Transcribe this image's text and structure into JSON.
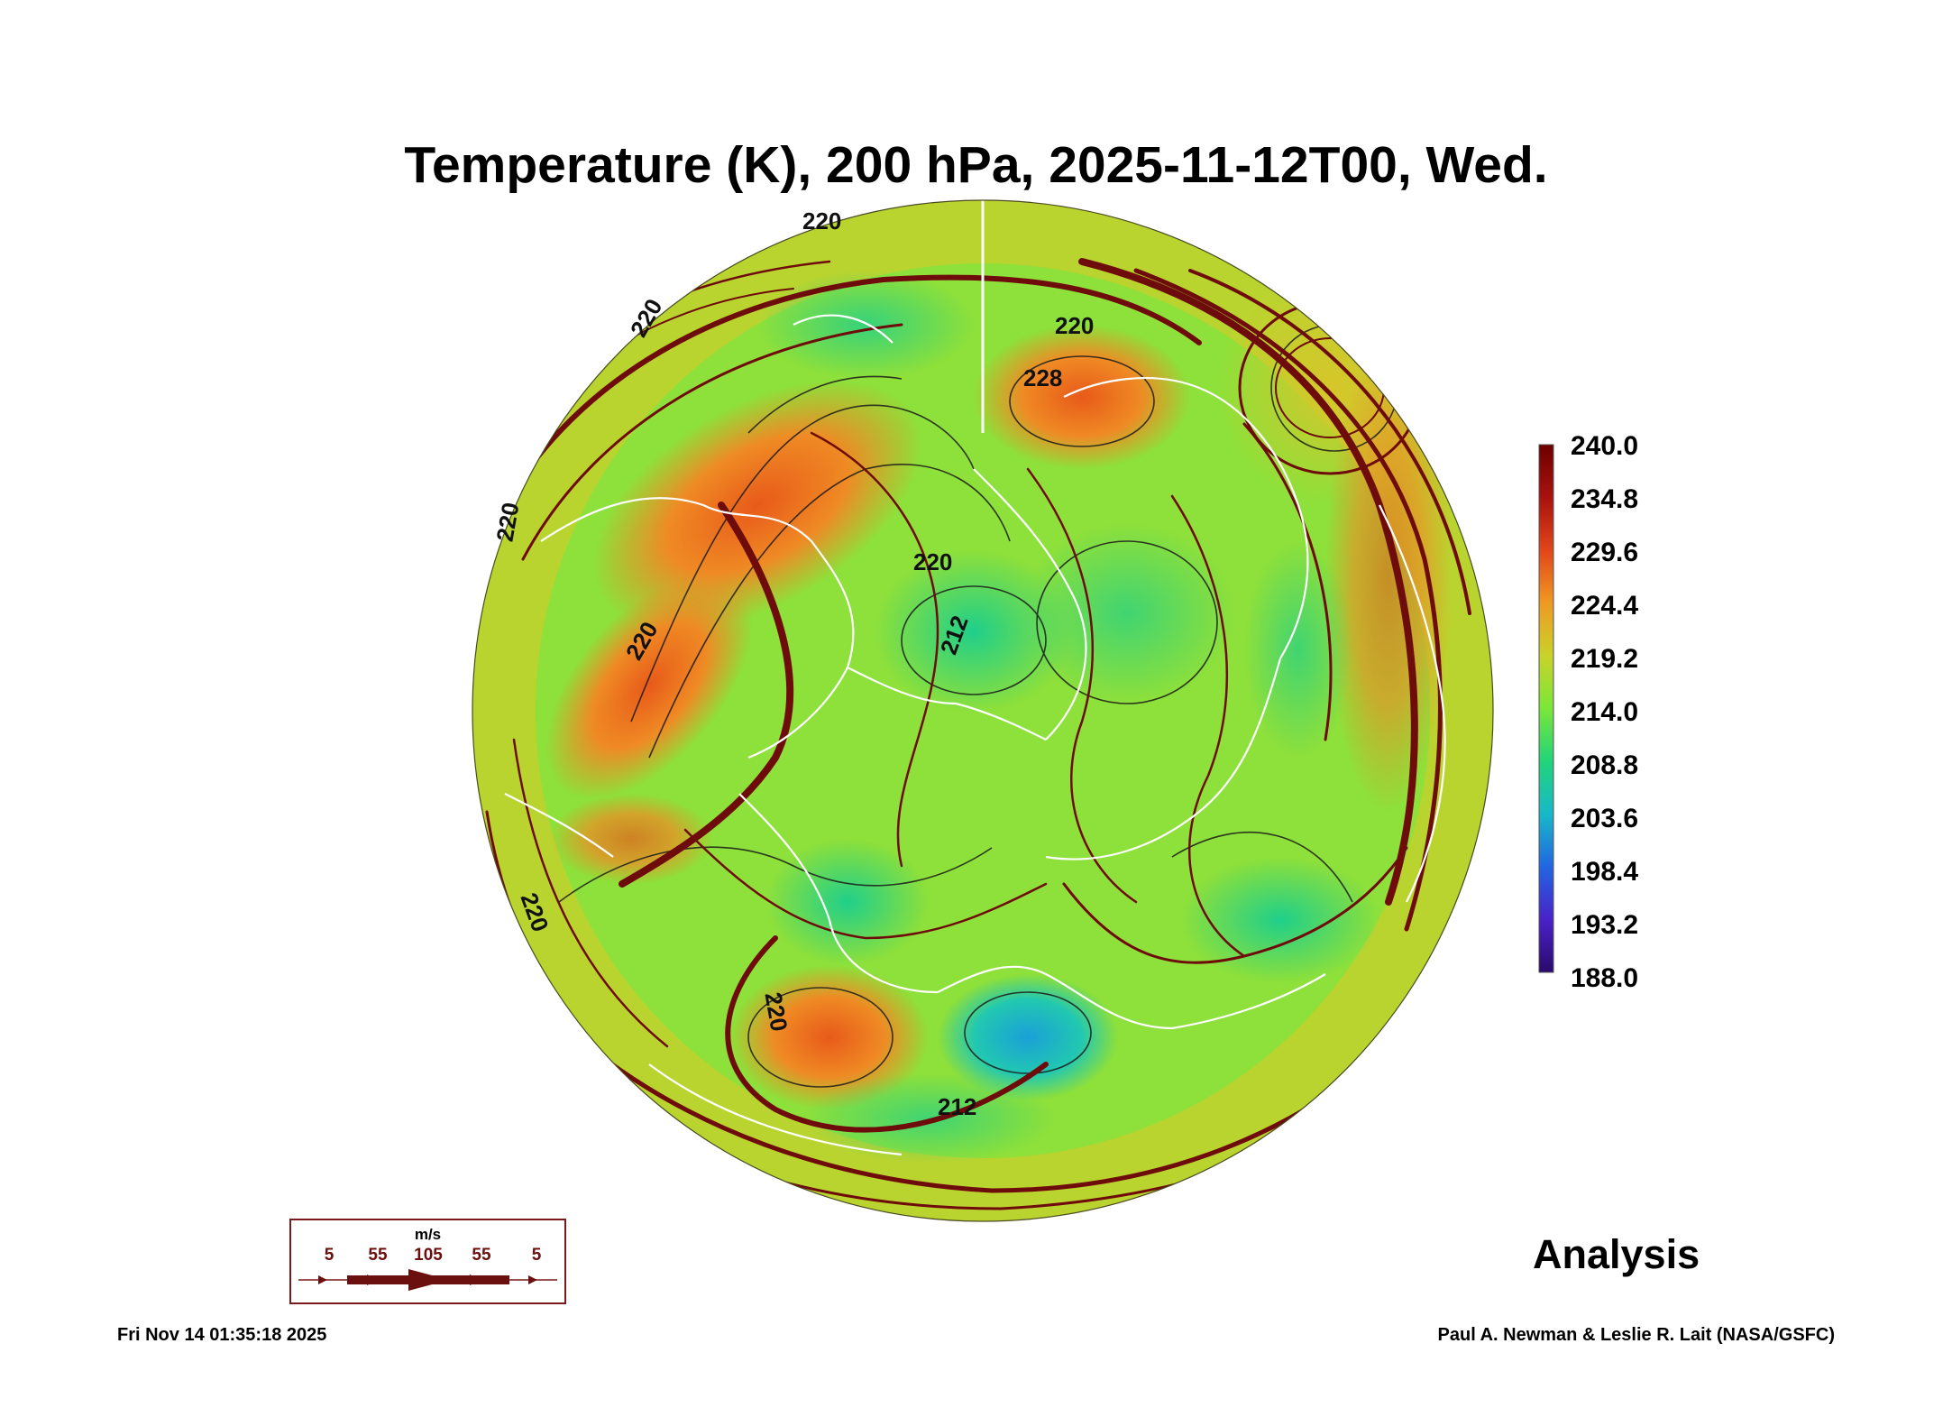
{
  "title": "Temperature (K), 200 hPa, 2025-11-12T00, Wed.",
  "colorbar": {
    "labels": [
      "240.0",
      "234.8",
      "229.6",
      "224.4",
      "219.2",
      "214.0",
      "208.8",
      "203.6",
      "198.4",
      "193.2",
      "188.0"
    ],
    "colors": [
      "#6b0000",
      "#b3140f",
      "#e8521a",
      "#e89a22",
      "#c9d62a",
      "#7be63a",
      "#22d47a",
      "#1aa8d8",
      "#2a5be8",
      "#5a20c8",
      "#2a0a6b"
    ]
  },
  "contour_labels": {
    "c220": "220",
    "c228": "228",
    "c212": "212"
  },
  "wind_legend": {
    "unit": "m/s",
    "values": [
      "5",
      "55",
      "105",
      "55",
      "5"
    ]
  },
  "analysis_label": "Analysis",
  "footer": {
    "timestamp": "Fri Nov 14 01:35:18 2025",
    "credit": "Paul A. Newman & Leslie R. Lait (NASA/GSFC)"
  }
}
